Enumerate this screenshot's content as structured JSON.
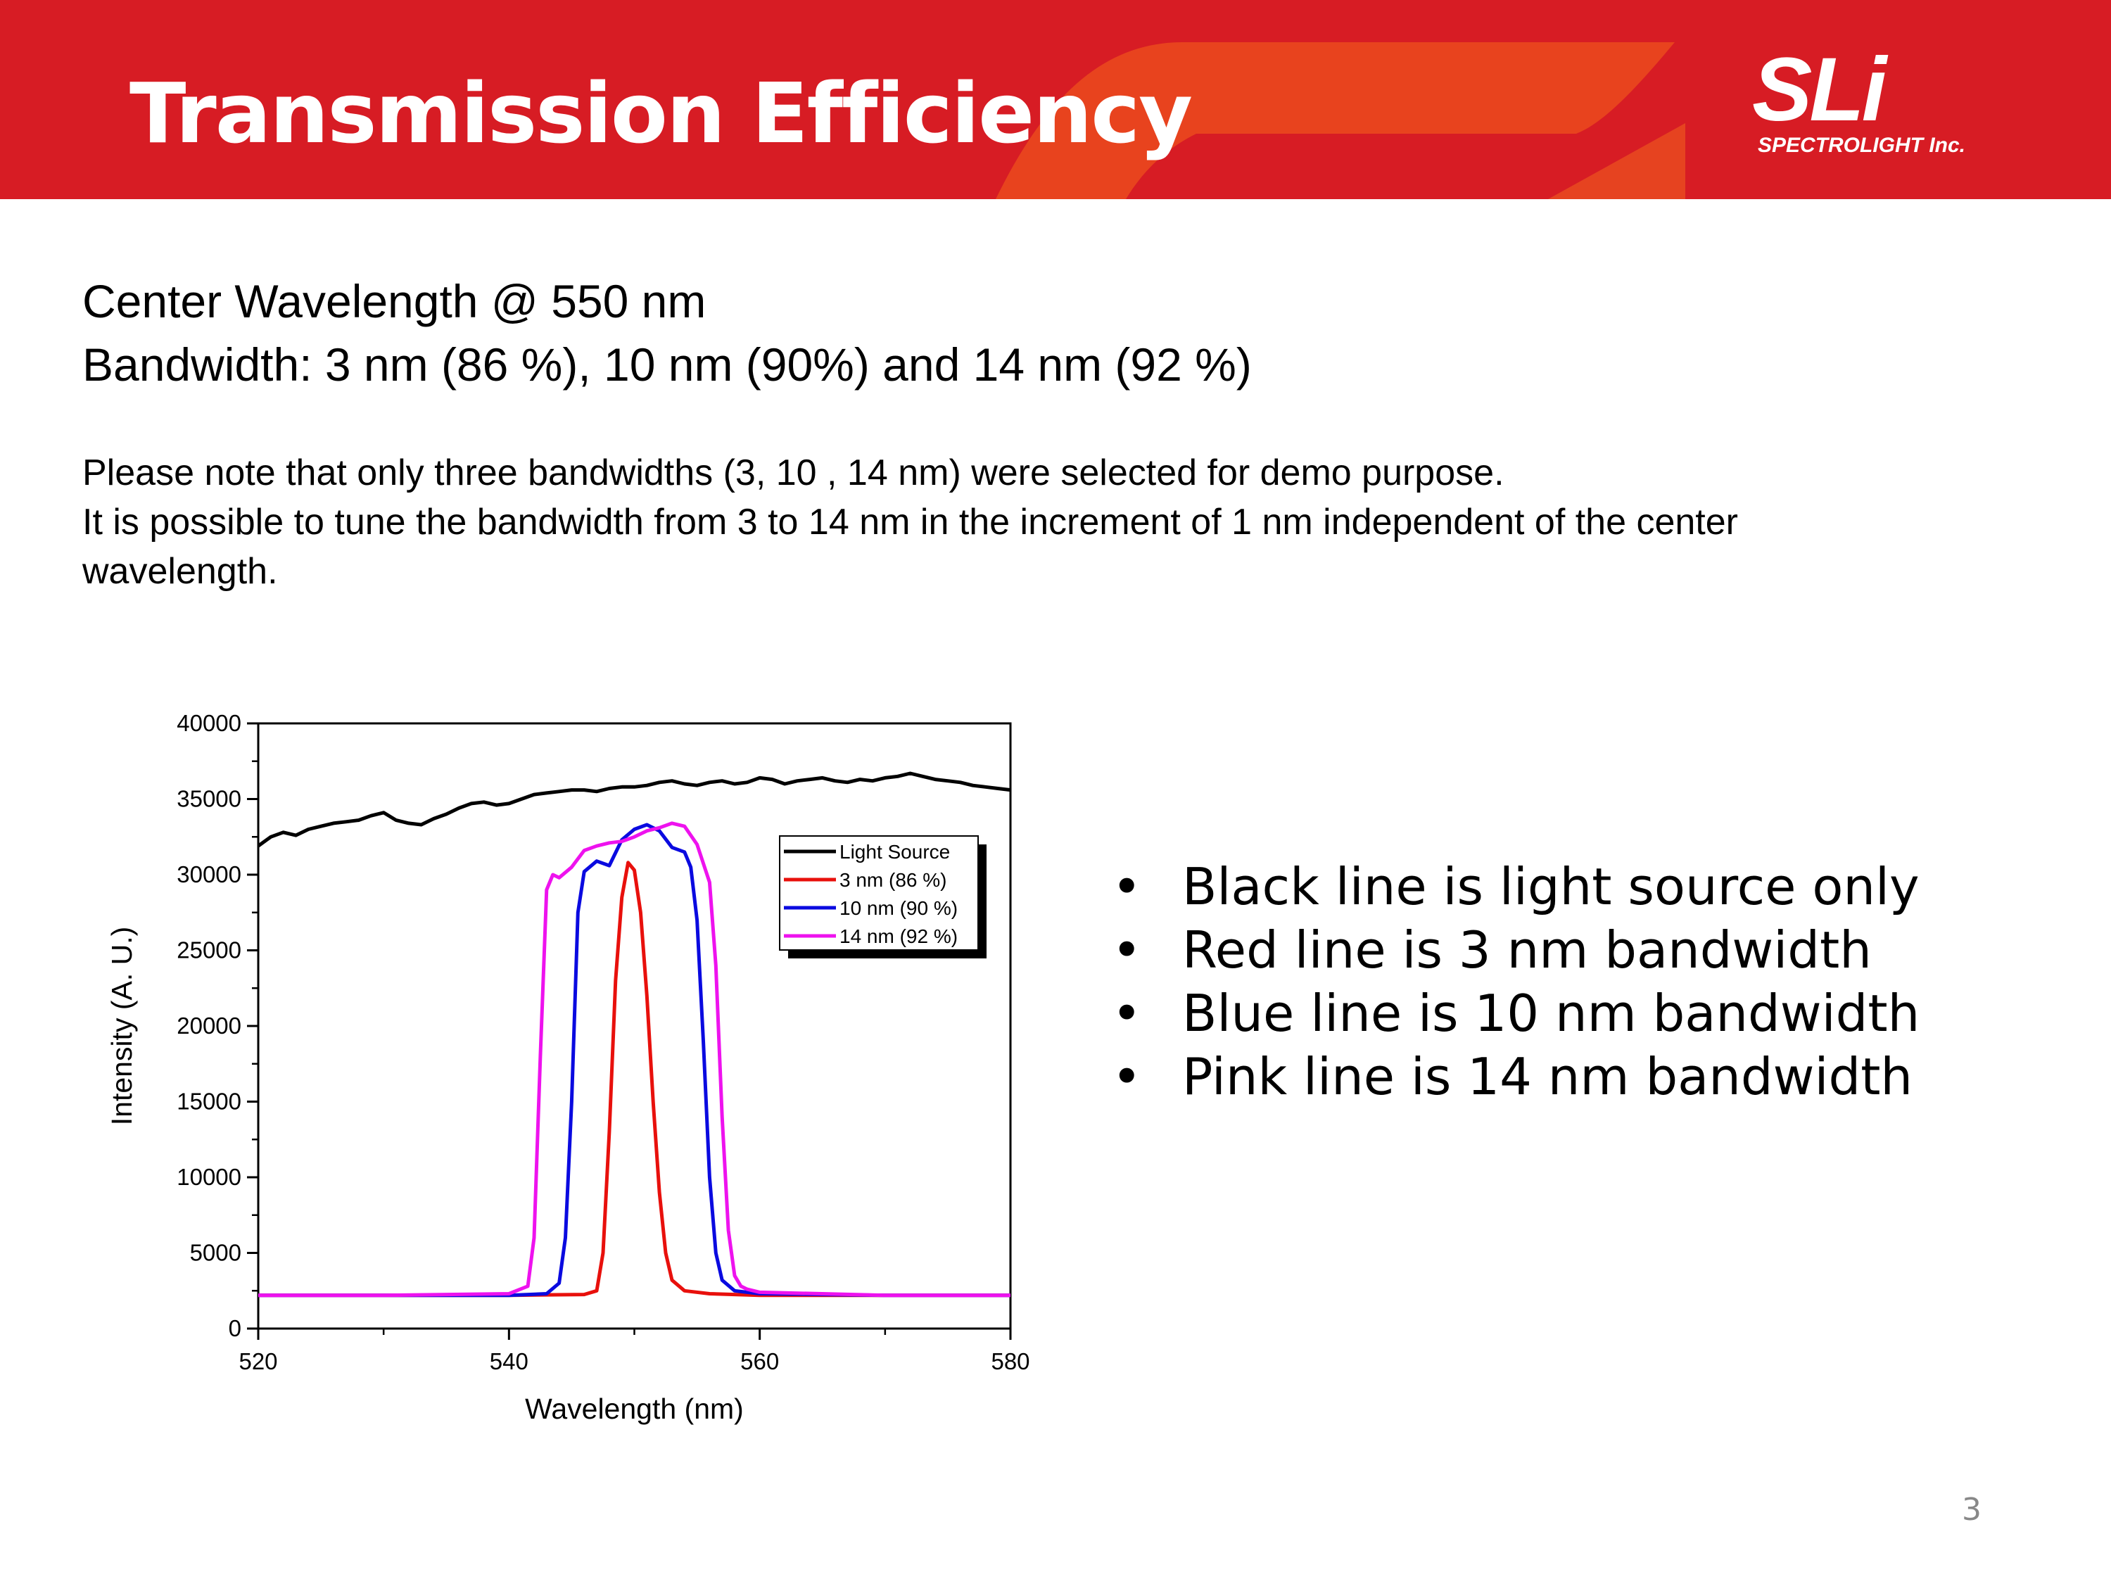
{
  "header": {
    "title": "Transmission Efficiency",
    "logo_main": "SLi",
    "logo_sub": "SPECTROLIGHT Inc."
  },
  "subtitle": {
    "line1": "Center Wavelength @ 550 nm",
    "line2": "Bandwidth: 3 nm (86 %), 10 nm (90%) and 14 nm (92 %)"
  },
  "note": {
    "line1": "Please note that only three bandwidths (3, 10 , 14 nm) were selected for demo purpose.",
    "line2": "It is possible to tune the bandwidth from 3 to 14 nm in the increment of 1 nm independent of the center",
    "line3": "wavelength."
  },
  "bullets": [
    "Black line is light source only",
    "Red line is 3 nm bandwidth",
    "Blue line is 10 nm bandwidth",
    "Pink line is 14 nm bandwidth"
  ],
  "bullet_symbol": "•",
  "page_number": "3",
  "colors": {
    "header_red": "#d71c24",
    "header_orange": "#e8431e"
  },
  "chart_data": {
    "type": "line",
    "title": "",
    "xlabel": "Wavelength (nm)",
    "ylabel": "Intensity (A. U.)",
    "xlim": [
      520,
      580
    ],
    "ylim": [
      0,
      40000
    ],
    "x_ticks": [
      520,
      540,
      560,
      580
    ],
    "y_ticks": [
      0,
      5000,
      10000,
      15000,
      20000,
      25000,
      30000,
      35000,
      40000
    ],
    "grid": false,
    "legend_position": "top-right",
    "series": [
      {
        "name": "Light Source",
        "color": "#000000",
        "x": [
          520,
          521,
          522,
          523,
          524,
          525,
          526,
          527,
          528,
          529,
          530,
          531,
          532,
          533,
          534,
          535,
          536,
          537,
          538,
          539,
          540,
          541,
          542,
          543,
          544,
          545,
          546,
          547,
          548,
          549,
          550,
          551,
          552,
          553,
          554,
          555,
          556,
          557,
          558,
          559,
          560,
          561,
          562,
          563,
          564,
          565,
          566,
          567,
          568,
          569,
          570,
          571,
          572,
          573,
          574,
          575,
          576,
          577,
          578,
          579,
          580
        ],
        "y": [
          31900,
          32500,
          32800,
          32600,
          33000,
          33200,
          33400,
          33500,
          33600,
          33900,
          34100,
          33600,
          33400,
          33300,
          33700,
          34000,
          34400,
          34700,
          34800,
          34600,
          34700,
          35000,
          35300,
          35400,
          35500,
          35600,
          35600,
          35500,
          35700,
          35800,
          35800,
          35900,
          36100,
          36200,
          36000,
          35900,
          36100,
          36200,
          36000,
          36100,
          36400,
          36300,
          36000,
          36200,
          36300,
          36400,
          36200,
          36100,
          36300,
          36200,
          36400,
          36500,
          36700,
          36500,
          36300,
          36200,
          36100,
          35900,
          35800,
          35700,
          35600
        ]
      },
      {
        "name": "3 nm (86 %)",
        "color": "#e8100c",
        "x": [
          520,
          530,
          540,
          546,
          547,
          547.5,
          548,
          548.5,
          549,
          549.5,
          550,
          550.5,
          551,
          551.5,
          552,
          552.5,
          553,
          554,
          556,
          560,
          570,
          580
        ],
        "y": [
          2200,
          2200,
          2200,
          2250,
          2500,
          5000,
          13000,
          23000,
          28500,
          30800,
          30300,
          27500,
          22000,
          15000,
          9000,
          5000,
          3200,
          2500,
          2300,
          2200,
          2200,
          2200
        ],
        "legend_label": "3 nm (86 %)"
      },
      {
        "name": "10 nm (90 %)",
        "color": "#0a0ae0",
        "x": [
          520,
          530,
          540,
          543,
          544,
          544.5,
          545,
          545.5,
          546,
          547,
          548,
          549,
          550,
          551,
          552,
          553,
          554,
          554.5,
          555,
          555.5,
          556,
          556.5,
          557,
          558,
          560,
          570,
          580
        ],
        "y": [
          2200,
          2200,
          2200,
          2300,
          3000,
          6000,
          15000,
          27500,
          30200,
          30900,
          30600,
          32300,
          33000,
          33300,
          32900,
          31800,
          31500,
          30500,
          27000,
          19000,
          10000,
          5000,
          3200,
          2500,
          2300,
          2200,
          2200
        ],
        "legend_label": "10 nm (90 %)"
      },
      {
        "name": "14 nm (92 %)",
        "color": "#ee12ee",
        "x": [
          520,
          530,
          540,
          541.5,
          542,
          542.5,
          543,
          543.5,
          544,
          545,
          546,
          547,
          548,
          549,
          550,
          551,
          552,
          553,
          554,
          555,
          556,
          556.5,
          557,
          557.5,
          558,
          558.5,
          559,
          560,
          570,
          580
        ],
        "y": [
          2200,
          2200,
          2300,
          2800,
          6000,
          18000,
          29000,
          30000,
          29800,
          30500,
          31600,
          31900,
          32100,
          32200,
          32500,
          32900,
          33100,
          33400,
          33200,
          32000,
          29500,
          24000,
          14000,
          6500,
          3500,
          2800,
          2600,
          2400,
          2200,
          2200
        ],
        "legend_label": "14 nm (92 %)"
      }
    ]
  }
}
